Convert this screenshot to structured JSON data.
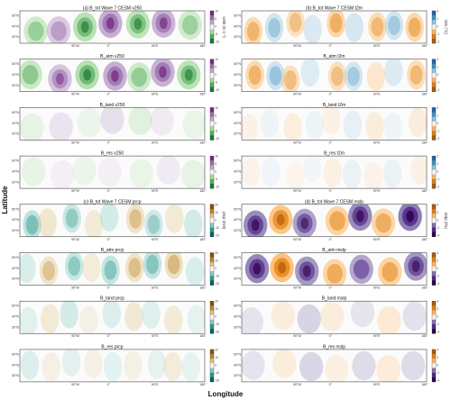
{
  "figure": {
    "ylabel": "Latitude",
    "xlabel": "Longitude",
    "lon_ticks": [
      "90°W",
      "0°",
      "90°E",
      "180°"
    ],
    "lat_ticks": [
      "50°N",
      "40°N",
      "30°N"
    ],
    "panels": [
      {
        "col": 0,
        "row": 0,
        "title": "(a) B_tot Wave 7 CESM v250",
        "var": "v250",
        "cbar_label": "v250 (m s⁻¹)",
        "cticks": [
          "10",
          "5",
          "0",
          "-5",
          "-10"
        ],
        "cmap": "pgr"
      },
      {
        "col": 0,
        "row": 1,
        "title": "B_atm v250",
        "var": "v250",
        "cbar_label": "",
        "cticks": [
          "10",
          "5",
          "0",
          "-5",
          "-10"
        ],
        "cmap": "pgr"
      },
      {
        "col": 0,
        "row": 2,
        "title": "B_land v250",
        "var": "v250",
        "cbar_label": "",
        "cticks": [
          "10",
          "5",
          "0",
          "-5",
          "-10"
        ],
        "cmap": "pgr"
      },
      {
        "col": 0,
        "row": 3,
        "title": "B_res v250",
        "var": "v250",
        "cbar_label": "",
        "cticks": [
          "10",
          "5",
          "0",
          "-5",
          "-10"
        ],
        "cmap": "pgr"
      },
      {
        "col": 0,
        "row": 4,
        "title": "(c) B_tot Wave 7 CESM prcp",
        "var": "prcp",
        "cbar_label": "prcp (mm)",
        "cticks": [
          "20",
          "10",
          "0",
          "-10",
          "-20"
        ],
        "cmap": "tbr"
      },
      {
        "col": 0,
        "row": 5,
        "title": "B_atm prcp",
        "var": "prcp",
        "cbar_label": "",
        "cticks": [
          "20",
          "10",
          "0",
          "-10",
          "-20"
        ],
        "cmap": "tbr"
      },
      {
        "col": 0,
        "row": 6,
        "title": "B_land prcp",
        "var": "prcp",
        "cbar_label": "",
        "cticks": [
          "20",
          "10",
          "0",
          "-10",
          "-20"
        ],
        "cmap": "tbr"
      },
      {
        "col": 0,
        "row": 7,
        "title": "B_res prcp",
        "var": "prcp",
        "cbar_label": "",
        "cticks": [
          "20",
          "10",
          "0",
          "-10",
          "-20"
        ],
        "cmap": "tbr"
      },
      {
        "col": 1,
        "row": 0,
        "title": "(b) B_tot Wave 7 CESM t2m",
        "var": "t2m",
        "cbar_label": "t2m (°C)",
        "cticks": [
          "2",
          "1",
          "0",
          "-1",
          "-2"
        ],
        "cmap": "obl"
      },
      {
        "col": 1,
        "row": 1,
        "title": "B_atm t2m",
        "var": "t2m",
        "cbar_label": "",
        "cticks": [
          "2",
          "1",
          "0",
          "-1",
          "-2"
        ],
        "cmap": "obl"
      },
      {
        "col": 1,
        "row": 2,
        "title": "B_land t2m",
        "var": "t2m",
        "cbar_label": "",
        "cticks": [
          "2",
          "1",
          "0",
          "-1",
          "-2"
        ],
        "cmap": "obl"
      },
      {
        "col": 1,
        "row": 3,
        "title": "B_res t2m",
        "var": "t2m",
        "cbar_label": "",
        "cticks": [
          "2",
          "1",
          "0",
          "-1",
          "-2"
        ],
        "cmap": "obl"
      },
      {
        "col": 1,
        "row": 4,
        "title": "(d) B_tot Wave 7 CESM mslp",
        "var": "mslp",
        "cbar_label": "mslp (Pa)",
        "cticks": [
          "4",
          "2",
          "0",
          "-2",
          "-4"
        ],
        "cmap": "pur"
      },
      {
        "col": 1,
        "row": 5,
        "title": "B_atm mslp",
        "var": "mslp",
        "cbar_label": "",
        "cticks": [
          "4",
          "2",
          "0",
          "-2",
          "-4"
        ],
        "cmap": "pur"
      },
      {
        "col": 1,
        "row": 6,
        "title": "B_land mslp",
        "var": "mslp",
        "cbar_label": "",
        "cticks": [
          "4",
          "2",
          "0",
          "-2",
          "-4"
        ],
        "cmap": "pur"
      },
      {
        "col": 1,
        "row": 7,
        "title": "B_res mslp",
        "var": "mslp",
        "cbar_label": "",
        "cticks": [
          "4",
          "2",
          "0",
          "-2",
          "-4"
        ],
        "cmap": "pur"
      }
    ],
    "colors": {
      "pgr": [
        "#1b7837",
        "#5aae61",
        "#a6dba0",
        "#f7f7f7",
        "#c2a5cf",
        "#9970ab",
        "#762a83"
      ],
      "tbr": [
        "#01665e",
        "#35978f",
        "#80cdc1",
        "#f7f7f7",
        "#dfc27d",
        "#bf812d",
        "#8c510a"
      ],
      "obl": [
        "#b35806",
        "#e08214",
        "#fdb863",
        "#f7f7f7",
        "#92c5de",
        "#4393c3",
        "#2166ac"
      ],
      "pur": [
        "#2d004b",
        "#542788",
        "#8073ac",
        "#f7f7f7",
        "#fdb863",
        "#e08214",
        "#b35806"
      ]
    }
  },
  "chart_data": {
    "type": "heatmap",
    "title": "",
    "xlabel": "Longitude",
    "ylabel": "Latitude",
    "panels": [
      {
        "title": "(a) B_tot Wave 7 CESM v250",
        "variable": "v250",
        "units": "m s⁻¹",
        "range": [
          -10,
          10
        ],
        "amplitude": 0.9
      },
      {
        "title": "B_atm v250",
        "variable": "v250",
        "units": "m s⁻¹",
        "range": [
          -10,
          10
        ],
        "amplitude": 0.85
      },
      {
        "title": "B_land v250",
        "variable": "v250",
        "units": "m s⁻¹",
        "range": [
          -10,
          10
        ],
        "amplitude": 0.3
      },
      {
        "title": "B_res v250",
        "variable": "v250",
        "units": "m s⁻¹",
        "range": [
          -10,
          10
        ],
        "amplitude": 0.25
      },
      {
        "title": "(b) B_tot Wave 7 CESM t2m",
        "variable": "t2m",
        "units": "°C",
        "range": [
          -2,
          2
        ],
        "amplitude": 0.5
      },
      {
        "title": "B_atm t2m",
        "variable": "t2m",
        "units": "°C",
        "range": [
          -2,
          2
        ],
        "amplitude": 0.45
      },
      {
        "title": "B_land t2m",
        "variable": "t2m",
        "units": "°C",
        "range": [
          -2,
          2
        ],
        "amplitude": 0.2
      },
      {
        "title": "B_res t2m",
        "variable": "t2m",
        "units": "°C",
        "range": [
          -2,
          2
        ],
        "amplitude": 0.15
      },
      {
        "title": "(c) B_tot Wave 7 CESM prcp",
        "variable": "prcp",
        "units": "mm",
        "range": [
          -20,
          20
        ],
        "amplitude": 0.5
      },
      {
        "title": "B_atm prcp",
        "variable": "prcp",
        "units": "mm",
        "range": [
          -20,
          20
        ],
        "amplitude": 0.45
      },
      {
        "title": "B_land prcp",
        "variable": "prcp",
        "units": "mm",
        "range": [
          -20,
          20
        ],
        "amplitude": 0.3
      },
      {
        "title": "B_res prcp",
        "variable": "prcp",
        "units": "mm",
        "range": [
          -20,
          20
        ],
        "amplitude": 0.3
      },
      {
        "title": "(d) B_tot Wave 7 CESM mslp",
        "variable": "mslp",
        "units": "Pa",
        "range": [
          -4,
          4
        ],
        "amplitude": 0.9
      },
      {
        "title": "B_atm mslp",
        "variable": "mslp",
        "units": "Pa",
        "range": [
          -4,
          4
        ],
        "amplitude": 0.85
      },
      {
        "title": "B_land mslp",
        "variable": "mslp",
        "units": "Pa",
        "range": [
          -4,
          4
        ],
        "amplitude": 0.3
      },
      {
        "title": "B_res mslp",
        "variable": "mslp",
        "units": "Pa",
        "range": [
          -4,
          4
        ],
        "amplitude": 0.25
      }
    ],
    "x_ticks": [
      "90°W",
      "0°",
      "90°E",
      "180°"
    ],
    "y_ticks": [
      "50°N",
      "40°N",
      "30°N"
    ],
    "grid": false,
    "legend": "colorbar-right"
  }
}
